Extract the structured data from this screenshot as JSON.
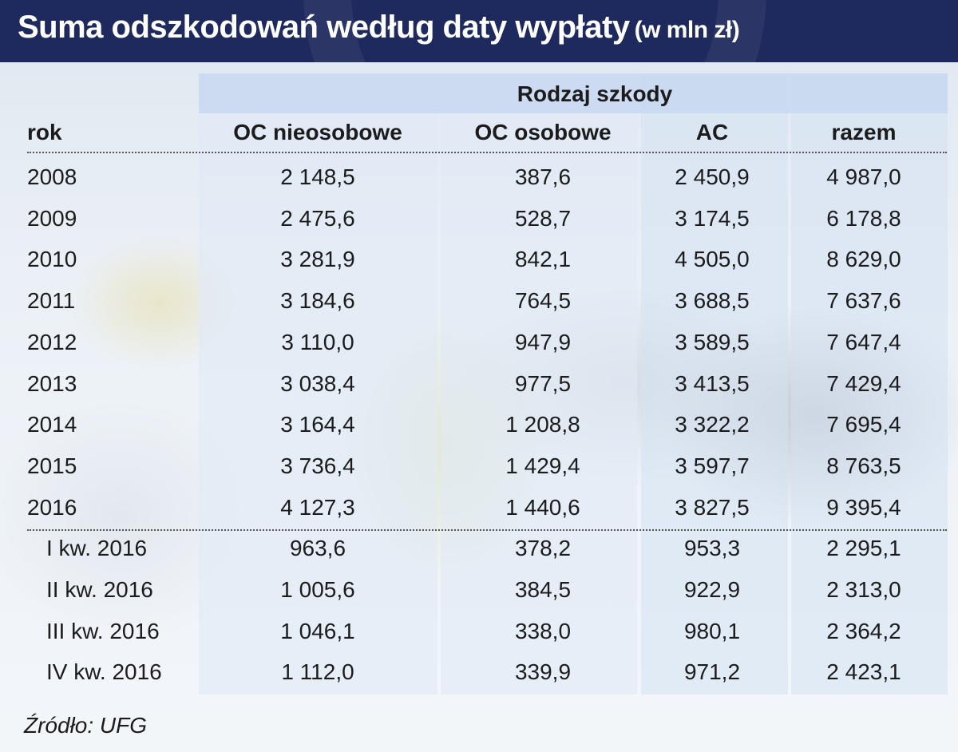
{
  "title": "Suma odszkodowań według daty wypłaty",
  "subtitle": "(w mln zł)",
  "source": "Źródło: UFG",
  "colors": {
    "title_bg": "#1e2a5e",
    "header_band": "#c4d6f0"
  },
  "chart_data": {
    "type": "table",
    "group_header": "Rodzaj szkody",
    "row_header": "rok",
    "columns": [
      "OC nieosobowe",
      "OC osobowe",
      "AC",
      "razem"
    ],
    "rows": [
      {
        "label": "2008",
        "values": [
          "2 148,5",
          "387,6",
          "2 450,9",
          "4 987,0"
        ]
      },
      {
        "label": "2009",
        "values": [
          "2 475,6",
          "528,7",
          "3 174,5",
          "6 178,8"
        ]
      },
      {
        "label": "2010",
        "values": [
          "3 281,9",
          "842,1",
          "4 505,0",
          "8 629,0"
        ]
      },
      {
        "label": "2011",
        "values": [
          "3 184,6",
          "764,5",
          "3 688,5",
          "7 637,6"
        ]
      },
      {
        "label": "2012",
        "values": [
          "3 110,0",
          "947,9",
          "3 589,5",
          "7 647,4"
        ]
      },
      {
        "label": "2013",
        "values": [
          "3 038,4",
          "977,5",
          "3 413,5",
          "7 429,4"
        ]
      },
      {
        "label": "2014",
        "values": [
          "3 164,4",
          "1 208,8",
          "3 322,2",
          "7 695,4"
        ]
      },
      {
        "label": "2015",
        "values": [
          "3 736,4",
          "1 429,4",
          "3 597,7",
          "8 763,5"
        ]
      },
      {
        "label": "2016",
        "values": [
          "4 127,3",
          "1 440,6",
          "3 827,5",
          "9 395,4"
        ]
      },
      {
        "label": "I kw. 2016",
        "values": [
          "963,6",
          "378,2",
          "953,3",
          "2 295,1"
        ]
      },
      {
        "label": "II kw. 2016",
        "values": [
          "1 005,6",
          "384,5",
          "922,9",
          "2 313,0"
        ]
      },
      {
        "label": "III kw. 2016",
        "values": [
          "1 046,1",
          "338,0",
          "980,1",
          "2 364,2"
        ]
      },
      {
        "label": "IV kw. 2016",
        "values": [
          "1 112,0",
          "339,9",
          "971,2",
          "2 423,1"
        ]
      }
    ]
  }
}
